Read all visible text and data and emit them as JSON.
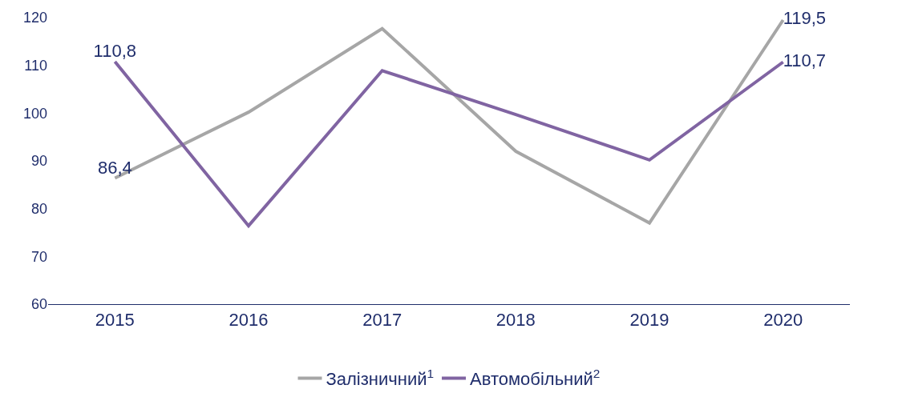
{
  "chart_data": {
    "type": "line",
    "categories": [
      "2015",
      "2016",
      "2017",
      "2018",
      "2019",
      "2020"
    ],
    "series": [
      {
        "name": "Залізничний$^{1}$",
        "color": "#a6a6a6",
        "values": [
          86.4,
          100.2,
          117.7,
          92,
          77,
          119.5
        ],
        "value_labels": [
          "86,4",
          null,
          null,
          null,
          null,
          "119,5"
        ]
      },
      {
        "name": "Автомобільний$^{2}$",
        "color": "#8064a2",
        "values": [
          110.8,
          76.4,
          108.9,
          99.7,
          90.2,
          110.7
        ],
        "value_labels": [
          "110,8",
          null,
          null,
          null,
          null,
          "110,7"
        ]
      }
    ],
    "ylim": [
      60,
      120
    ],
    "yticks": [
      60,
      70,
      80,
      90,
      100,
      110,
      120
    ],
    "legend": "bottom",
    "marker": "none",
    "line_style": "solid"
  }
}
